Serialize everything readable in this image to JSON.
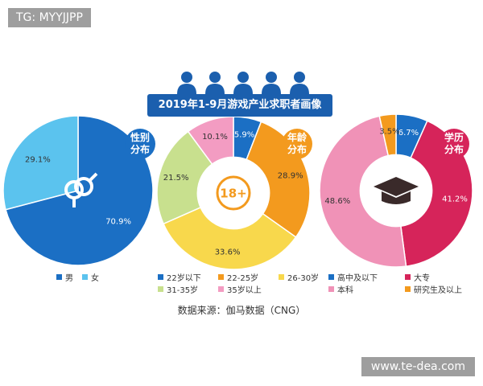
{
  "badge": "TG: MYYJJPP",
  "title": "2019年1-9月游戏产业求职者画像",
  "source": "数据来源：伽马数据（CNG）",
  "website": "www.te-dea.com",
  "chart_data": [
    {
      "type": "pie",
      "title": "性别分布",
      "title_color": "#1b6fc4",
      "donut": false,
      "categories": [
        "男",
        "女"
      ],
      "values": [
        70.9,
        29.1
      ],
      "value_labels": [
        "70.9%",
        "29.1%"
      ],
      "colors": [
        "#1b6fc4",
        "#5bc3ee"
      ]
    },
    {
      "type": "pie",
      "title": "年龄分布",
      "title_color": "#f39a1e",
      "donut": true,
      "center_label": "18+",
      "categories": [
        "22岁以下",
        "22-25岁",
        "26-30岁",
        "31-35岁",
        "35岁以上"
      ],
      "values": [
        5.9,
        28.9,
        33.6,
        21.5,
        10.1
      ],
      "value_labels": [
        "5.9%",
        "28.9%",
        "33.6%",
        "21.5%",
        "10.1%"
      ],
      "colors": [
        "#1b6fc4",
        "#f39a1e",
        "#f8d84c",
        "#c8e08e",
        "#f39cc2"
      ]
    },
    {
      "type": "pie",
      "title": "学历分布",
      "title_color": "#d6245a",
      "donut": true,
      "categories": [
        "高中及以下",
        "大专",
        "本科",
        "研究生及以上"
      ],
      "values": [
        6.7,
        41.2,
        48.6,
        3.5
      ],
      "value_labels": [
        "6.7%",
        "41.2%",
        "48.6%",
        "3.5%"
      ],
      "colors": [
        "#1b6fc4",
        "#d6245a",
        "#f092b7",
        "#f39a1e"
      ]
    }
  ]
}
